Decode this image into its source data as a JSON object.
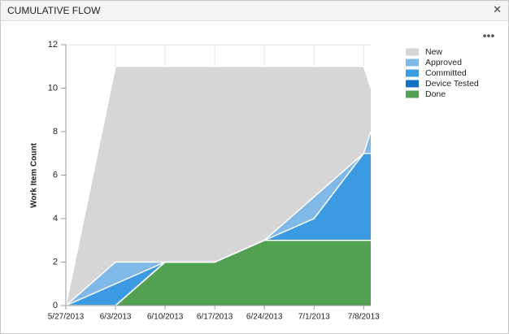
{
  "header": {
    "title": "CUMULATIVE FLOW"
  },
  "chart_data": {
    "type": "stacked-area",
    "y_label": "Work Item Count",
    "x": [
      "5/27/2013",
      "6/3/2013",
      "6/10/2013",
      "6/17/2013",
      "6/24/2013",
      "7/1/2013",
      "7/8/2013",
      "7/9/2013"
    ],
    "series": [
      {
        "name": "New",
        "color": "#d6d6d6",
        "values": [
          0,
          9,
          9,
          9,
          8,
          6,
          4,
          2
        ]
      },
      {
        "name": "Approved",
        "color": "#80b9e7",
        "values": [
          0,
          1,
          0,
          0,
          0,
          1,
          0,
          1
        ]
      },
      {
        "name": "Committed",
        "color": "#3b9ae0",
        "values": [
          0,
          1,
          0,
          0,
          0,
          1,
          4,
          4
        ]
      },
      {
        "name": "Device Tested",
        "color": "#0f72c4",
        "values": [
          0,
          0,
          0,
          0,
          0,
          0,
          0,
          0
        ]
      },
      {
        "name": "Done",
        "color": "#53a053",
        "values": [
          0,
          0,
          2,
          2,
          3,
          3,
          3,
          3
        ]
      }
    ],
    "xlim": [
      "5/27/2013",
      "7/9/2013"
    ],
    "xticks": [
      "5/27/2013",
      "6/3/2013",
      "6/10/2013",
      "6/17/2013",
      "6/24/2013",
      "7/1/2013",
      "7/8/2013"
    ],
    "ylim": [
      0,
      12
    ],
    "yticks": [
      0,
      2,
      4,
      6,
      8,
      10,
      12
    ],
    "grid": "x",
    "legend": "right"
  }
}
